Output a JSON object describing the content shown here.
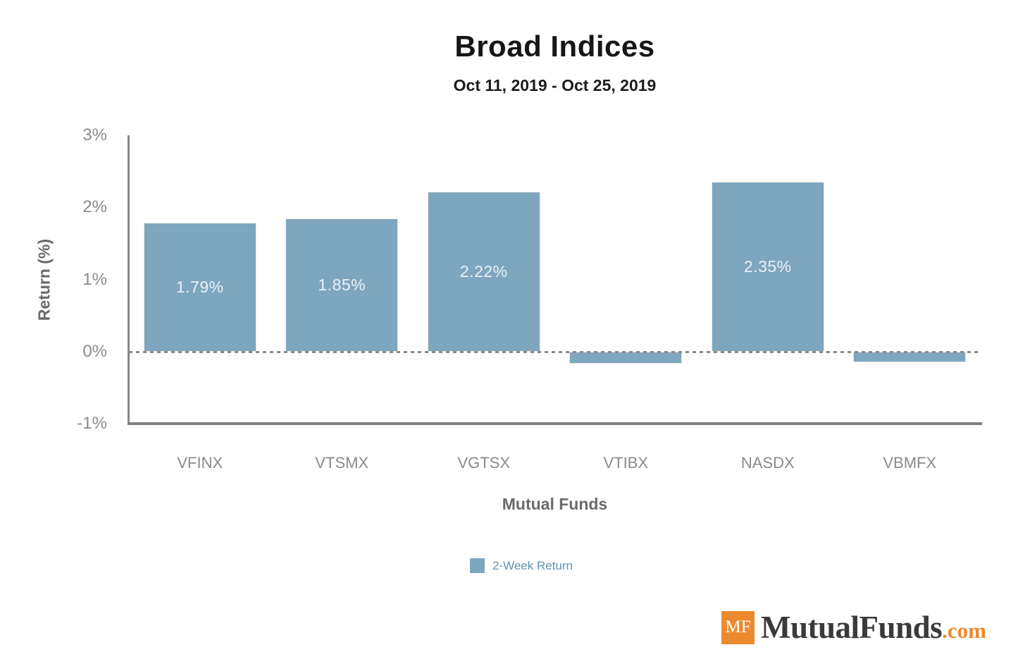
{
  "chart_data": {
    "type": "bar",
    "title": "Broad Indices",
    "subtitle": "Oct 11, 2019 - Oct 25, 2019",
    "xlabel": "Mutual Funds",
    "ylabel": "Return (%)",
    "ylim": [
      -1,
      3
    ],
    "yticks": [
      {
        "value": 3,
        "label": "3%"
      },
      {
        "value": 2,
        "label": "2%"
      },
      {
        "value": 1,
        "label": "1%"
      },
      {
        "value": 0,
        "label": "0%"
      },
      {
        "value": -1,
        "label": "-1%"
      }
    ],
    "categories": [
      "VFINX",
      "VTSMX",
      "VGTSX",
      "VTIBX",
      "NASDX",
      "VBMFX"
    ],
    "series": [
      {
        "name": "2-Week Return",
        "values": [
          1.79,
          1.85,
          2.22,
          -0.17,
          2.35,
          -0.15
        ],
        "bar_labels": [
          "1.79%",
          "1.85%",
          "2.22%",
          "",
          "2.35%",
          ""
        ]
      }
    ],
    "legend_label": "2-Week Return",
    "legend_position": "bottom-center",
    "grid": false,
    "zero_line_style": "dashed",
    "bar_color": "#7FA6BF"
  },
  "logo": {
    "mark": "MF",
    "name": "MutualFunds",
    "tld": ".com"
  },
  "colors": {
    "bar": "#7FA6BF",
    "bar_label_text": "#E9F1F6",
    "legend_text": "#5E92B2",
    "axis_line": "#7F7F7F",
    "tick_text": "#8B8B8B",
    "axis_title_text": "#6A6A6A",
    "zero_line": "#8A8A8A",
    "title_text": "#161616",
    "logo_orange": "#EC8A2E",
    "logo_name_text": "#3A3A3A",
    "background": "#FFFFFF"
  }
}
